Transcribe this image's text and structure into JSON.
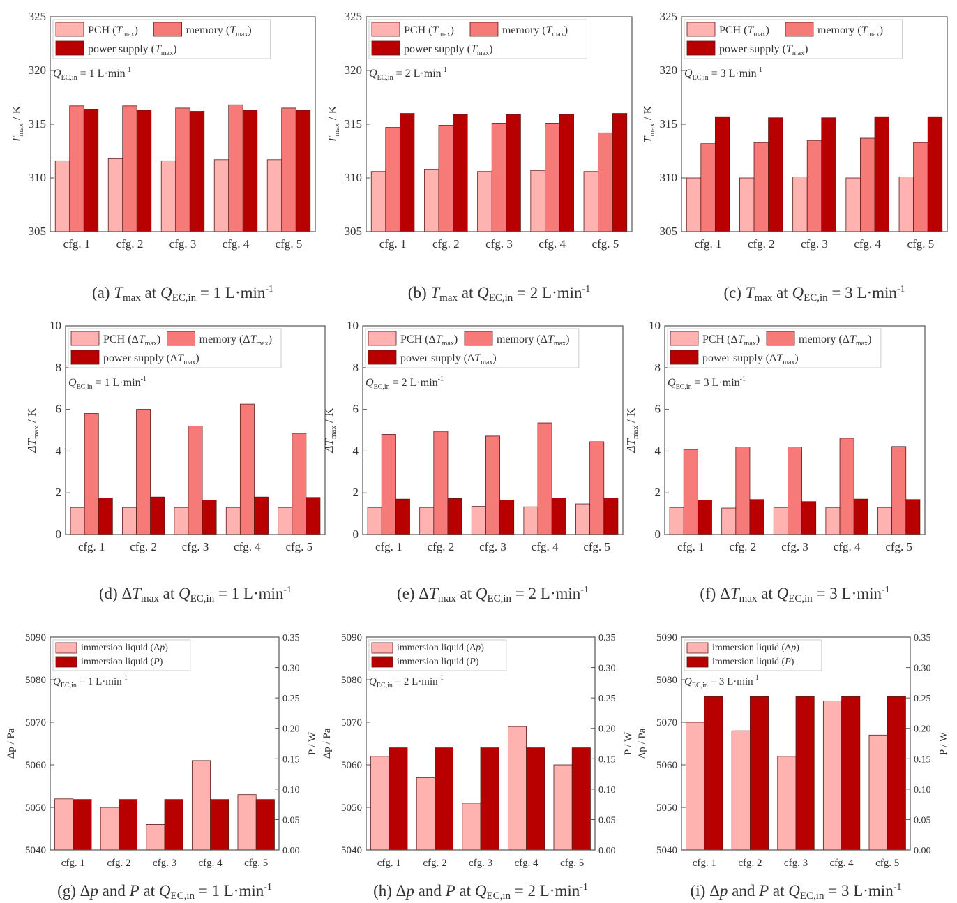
{
  "colors": {
    "pch": "#ffb3b0",
    "memory": "#f57a78",
    "power": "#b80000",
    "axis": "#555555",
    "legend_border": "#cccccc"
  },
  "chart_data": [
    {
      "id": "a",
      "type": "bar",
      "categories": [
        "cfg. 1",
        "cfg. 2",
        "cfg. 3",
        "cfg. 4",
        "cfg. 5"
      ],
      "ylabel_main": "T",
      "ylabel_sub": "max",
      "ylabel_unit": " / K",
      "ylim": [
        305,
        325
      ],
      "yticks": [
        "305",
        "310",
        "315",
        "320",
        "325"
      ],
      "flow_prefix": "Q",
      "flow_sub": "EC,in",
      "flow_value": " = 1 L·min",
      "flow_exp": "-1",
      "legend": [
        {
          "name": "PCH (",
          "var": "T",
          "sub": "max",
          "close": ")",
          "color_key": "pch"
        },
        {
          "name": "memory (",
          "var": "T",
          "sub": "max",
          "close": ")",
          "color_key": "memory"
        },
        {
          "name": "power supply (",
          "var": "T",
          "sub": "max",
          "close": ")",
          "color_key": "power"
        }
      ],
      "series": [
        {
          "name": "PCH (Tmax)",
          "values": [
            311.6,
            311.8,
            311.6,
            311.7,
            311.7
          ]
        },
        {
          "name": "memory (Tmax)",
          "values": [
            316.7,
            316.7,
            316.5,
            316.8,
            316.5
          ]
        },
        {
          "name": "power supply (Tmax)",
          "values": [
            316.4,
            316.3,
            316.2,
            316.3,
            316.3
          ]
        }
      ],
      "caption": {
        "label": "(a) ",
        "var": "T",
        "sub": "max",
        "mid": " at ",
        "q": "Q",
        "qsub": "EC,in",
        "rest": " = 1 L·min",
        "exp": "-1"
      }
    },
    {
      "id": "b",
      "type": "bar",
      "categories": [
        "cfg. 1",
        "cfg. 2",
        "cfg. 3",
        "cfg. 4",
        "cfg. 5"
      ],
      "ylabel_main": "T",
      "ylabel_sub": "max",
      "ylabel_unit": " / K",
      "ylim": [
        305,
        325
      ],
      "yticks": [
        "305",
        "310",
        "315",
        "320",
        "325"
      ],
      "flow_prefix": "Q",
      "flow_sub": "EC,in",
      "flow_value": " = 2 L·min",
      "flow_exp": "-1",
      "legend": [
        {
          "name": "PCH (",
          "var": "T",
          "sub": "max",
          "close": ")",
          "color_key": "pch"
        },
        {
          "name": "memory (",
          "var": "T",
          "sub": "max",
          "close": ")",
          "color_key": "memory"
        },
        {
          "name": "power supply (",
          "var": "T",
          "sub": "max",
          "close": ")",
          "color_key": "power"
        }
      ],
      "series": [
        {
          "name": "PCH (Tmax)",
          "values": [
            310.6,
            310.8,
            310.6,
            310.7,
            310.6
          ]
        },
        {
          "name": "memory (Tmax)",
          "values": [
            314.7,
            314.9,
            315.1,
            315.1,
            314.2
          ]
        },
        {
          "name": "power supply (Tmax)",
          "values": [
            316.0,
            315.9,
            315.9,
            315.9,
            316.0
          ]
        }
      ],
      "caption": {
        "label": "(b) ",
        "var": "T",
        "sub": "max",
        "mid": " at ",
        "q": "Q",
        "qsub": "EC,in",
        "rest": " = 2 L·min",
        "exp": "-1"
      }
    },
    {
      "id": "c",
      "type": "bar",
      "categories": [
        "cfg. 1",
        "cfg. 2",
        "cfg. 3",
        "cfg. 4",
        "cfg. 5"
      ],
      "ylabel_main": "T",
      "ylabel_sub": "max",
      "ylabel_unit": " / K",
      "ylim": [
        305,
        325
      ],
      "yticks": [
        "305",
        "310",
        "315",
        "320",
        "325"
      ],
      "flow_prefix": "Q",
      "flow_sub": "EC,in",
      "flow_value": " = 3 L·min",
      "flow_exp": "-1",
      "legend": [
        {
          "name": "PCH (",
          "var": "T",
          "sub": "max",
          "close": ")",
          "color_key": "pch"
        },
        {
          "name": "memory (",
          "var": "T",
          "sub": "max",
          "close": ")",
          "color_key": "memory"
        },
        {
          "name": "power supply (",
          "var": "T",
          "sub": "max",
          "close": ")",
          "color_key": "power"
        }
      ],
      "series": [
        {
          "name": "PCH (Tmax)",
          "values": [
            310.0,
            310.0,
            310.1,
            310.0,
            310.1
          ]
        },
        {
          "name": "memory (Tmax)",
          "values": [
            313.2,
            313.3,
            313.5,
            313.7,
            313.3
          ]
        },
        {
          "name": "power supply (Tmax)",
          "values": [
            315.7,
            315.6,
            315.6,
            315.7,
            315.7
          ]
        }
      ],
      "caption": {
        "label": "(c) ",
        "var": "T",
        "sub": "max",
        "mid": " at ",
        "q": "Q",
        "qsub": "EC,in",
        "rest": " = 3 L·min",
        "exp": "-1"
      }
    },
    {
      "id": "d",
      "type": "bar",
      "categories": [
        "cfg. 1",
        "cfg. 2",
        "cfg. 3",
        "cfg. 4",
        "cfg. 5"
      ],
      "ylabel_main": "ΔT",
      "ylabel_sub": "max",
      "ylabel_unit": " / K",
      "ylim": [
        0,
        10
      ],
      "yticks": [
        "0",
        "2",
        "4",
        "6",
        "8",
        "10"
      ],
      "flow_prefix": "Q",
      "flow_sub": "EC,in",
      "flow_value": " = 1 L·min",
      "flow_exp": "-1",
      "legend": [
        {
          "name": "PCH (Δ",
          "var": "T",
          "sub": "max",
          "close": ")",
          "color_key": "pch"
        },
        {
          "name": "memory (Δ",
          "var": "T",
          "sub": "max",
          "close": ")",
          "color_key": "memory"
        },
        {
          "name": "power supply (Δ",
          "var": "T",
          "sub": "max",
          "close": ")",
          "color_key": "power"
        }
      ],
      "series": [
        {
          "name": "PCH (ΔTmax)",
          "values": [
            1.3,
            1.3,
            1.3,
            1.3,
            1.3
          ]
        },
        {
          "name": "memory (ΔTmax)",
          "values": [
            5.8,
            6.0,
            5.2,
            6.25,
            4.85
          ]
        },
        {
          "name": "power supply (ΔTmax)",
          "values": [
            1.75,
            1.8,
            1.65,
            1.8,
            1.78
          ]
        }
      ],
      "caption": {
        "label": "(d) Δ",
        "var": "T",
        "sub": "max",
        "mid": " at ",
        "q": "Q",
        "qsub": "EC,in",
        "rest": " = 1 L·min",
        "exp": "-1"
      }
    },
    {
      "id": "e",
      "type": "bar",
      "categories": [
        "cfg. 1",
        "cfg. 2",
        "cfg. 3",
        "cfg. 4",
        "cfg. 5"
      ],
      "ylabel_main": "ΔT",
      "ylabel_sub": "max",
      "ylabel_unit": " / K",
      "ylim": [
        0,
        10
      ],
      "yticks": [
        "0",
        "2",
        "4",
        "6",
        "8",
        "10"
      ],
      "flow_prefix": "Q",
      "flow_sub": "EC,in",
      "flow_value": " = 2 L·min",
      "flow_exp": "-1",
      "legend": [
        {
          "name": "PCH (Δ",
          "var": "T",
          "sub": "max",
          "close": ")",
          "color_key": "pch"
        },
        {
          "name": "memory (Δ",
          "var": "T",
          "sub": "max",
          "close": ")",
          "color_key": "memory"
        },
        {
          "name": "power supply (Δ",
          "var": "T",
          "sub": "max",
          "close": ")",
          "color_key": "power"
        }
      ],
      "series": [
        {
          "name": "PCH (ΔTmax)",
          "values": [
            1.3,
            1.3,
            1.35,
            1.33,
            1.47
          ]
        },
        {
          "name": "memory (ΔTmax)",
          "values": [
            4.8,
            4.95,
            4.72,
            5.35,
            4.45
          ]
        },
        {
          "name": "power supply (ΔTmax)",
          "values": [
            1.7,
            1.73,
            1.65,
            1.75,
            1.75
          ]
        }
      ],
      "caption": {
        "label": "(e) Δ",
        "var": "T",
        "sub": "max",
        "mid": " at ",
        "q": "Q",
        "qsub": "EC,in",
        "rest": " = 2 L·min",
        "exp": "-1"
      }
    },
    {
      "id": "f",
      "type": "bar",
      "categories": [
        "cfg. 1",
        "cfg. 2",
        "cfg. 3",
        "cfg. 4",
        "cfg. 5"
      ],
      "ylabel_main": "ΔT",
      "ylabel_sub": "max",
      "ylabel_unit": " / K",
      "ylim": [
        0,
        10
      ],
      "yticks": [
        "0",
        "2",
        "4",
        "6",
        "8",
        "10"
      ],
      "flow_prefix": "Q",
      "flow_sub": "EC,in",
      "flow_value": " = 3 L·min",
      "flow_exp": "-1",
      "legend": [
        {
          "name": "PCH (Δ",
          "var": "T",
          "sub": "max",
          "close": ")",
          "color_key": "pch"
        },
        {
          "name": "memory (Δ",
          "var": "T",
          "sub": "max",
          "close": ")",
          "color_key": "memory"
        },
        {
          "name": "power supply (Δ",
          "var": "T",
          "sub": "max",
          "close": ")",
          "color_key": "power"
        }
      ],
      "series": [
        {
          "name": "PCH (ΔTmax)",
          "values": [
            1.3,
            1.27,
            1.3,
            1.3,
            1.3
          ]
        },
        {
          "name": "memory (ΔTmax)",
          "values": [
            4.08,
            4.2,
            4.2,
            4.62,
            4.22
          ]
        },
        {
          "name": "power supply (ΔTmax)",
          "values": [
            1.65,
            1.68,
            1.58,
            1.7,
            1.68
          ]
        }
      ],
      "caption": {
        "label": "(f) Δ",
        "var": "T",
        "sub": "max",
        "mid": " at ",
        "q": "Q",
        "qsub": "EC,in",
        "rest": " = 3 L·min",
        "exp": "-1"
      }
    },
    {
      "id": "g",
      "type": "bar",
      "categories": [
        "cfg. 1",
        "cfg. 2",
        "cfg. 3",
        "cfg. 4",
        "cfg. 5"
      ],
      "ylabel_left": "Δp / Pa",
      "ylabel_right": "P / W",
      "ylim": [
        5040,
        5090
      ],
      "yticks": [
        "5040",
        "5050",
        "5060",
        "5070",
        "5080",
        "5090"
      ],
      "ylim_right": [
        0,
        0.35
      ],
      "yticks_right": [
        "0.00",
        "0.05",
        "0.10",
        "0.15",
        "0.20",
        "0.25",
        "0.30",
        "0.35"
      ],
      "flow_prefix": "Q",
      "flow_sub": "EC,in",
      "flow_value": " = 1 L·min",
      "flow_exp": "-1",
      "legend": [
        {
          "name": "immersion liquid (Δ",
          "var": "p",
          "sub": "",
          "close": ")",
          "color_key": "pch"
        },
        {
          "name": "immersion liquid (",
          "var": "P",
          "sub": "",
          "close": ")",
          "color_key": "power"
        }
      ],
      "series": [
        {
          "name": "immersion liquid (Δp)",
          "axis": "left",
          "values": [
            5052,
            5050,
            5046,
            5061,
            5053
          ]
        },
        {
          "name": "immersion liquid (P)",
          "axis": "right",
          "values": [
            0.083,
            0.083,
            0.083,
            0.083,
            0.083
          ]
        }
      ],
      "caption": {
        "label": "(g) Δ",
        "var": "p",
        "sub": "",
        "mid": " and ",
        "extra": "P",
        "mid2": " at ",
        "q": "Q",
        "qsub": "EC,in",
        "rest": " = 1 L·min",
        "exp": "-1"
      }
    },
    {
      "id": "h",
      "type": "bar",
      "categories": [
        "cfg. 1",
        "cfg. 2",
        "cfg. 3",
        "cfg. 4",
        "cfg. 5"
      ],
      "ylabel_left": "Δp / Pa",
      "ylabel_right": "P / W",
      "ylim": [
        5040,
        5090
      ],
      "yticks": [
        "5040",
        "5050",
        "5060",
        "5070",
        "5080",
        "5090"
      ],
      "ylim_right": [
        0,
        0.35
      ],
      "yticks_right": [
        "0.00",
        "0.05",
        "0.10",
        "0.15",
        "0.20",
        "0.25",
        "0.30",
        "0.35"
      ],
      "flow_prefix": "Q",
      "flow_sub": "EC,in",
      "flow_value": " = 2 L·min",
      "flow_exp": "-1",
      "legend": [
        {
          "name": "immersion liquid (Δ",
          "var": "p",
          "sub": "",
          "close": ")",
          "color_key": "pch"
        },
        {
          "name": "immersion liquid (",
          "var": "P",
          "sub": "",
          "close": ")",
          "color_key": "power"
        }
      ],
      "series": [
        {
          "name": "immersion liquid (Δp)",
          "axis": "left",
          "values": [
            5062,
            5057,
            5051,
            5069,
            5060
          ]
        },
        {
          "name": "immersion liquid (P)",
          "axis": "right",
          "values": [
            0.168,
            0.168,
            0.168,
            0.168,
            0.168
          ]
        }
      ],
      "caption": {
        "label": "(h) Δ",
        "var": "p",
        "sub": "",
        "mid": " and ",
        "extra": "P",
        "mid2": " at ",
        "q": "Q",
        "qsub": "EC,in",
        "rest": " = 2 L·min",
        "exp": "-1"
      }
    },
    {
      "id": "i",
      "type": "bar",
      "categories": [
        "cfg. 1",
        "cfg. 2",
        "cfg. 3",
        "cfg. 4",
        "cfg. 5"
      ],
      "ylabel_left": "Δp / Pa",
      "ylabel_right": "P / W",
      "ylim": [
        5040,
        5090
      ],
      "yticks": [
        "5040",
        "5050",
        "5060",
        "5070",
        "5080",
        "5090"
      ],
      "ylim_right": [
        0,
        0.35
      ],
      "yticks_right": [
        "0.00",
        "0.05",
        "0.10",
        "0.15",
        "0.20",
        "0.25",
        "0.30",
        "0.35"
      ],
      "flow_prefix": "Q",
      "flow_sub": "EC,in",
      "flow_value": " = 3 L·min",
      "flow_exp": "-1",
      "legend": [
        {
          "name": "immersion liquid (Δ",
          "var": "p",
          "sub": "",
          "close": ")",
          "color_key": "pch"
        },
        {
          "name": "immersion liquid (",
          "var": "P",
          "sub": "",
          "close": ")",
          "color_key": "power"
        }
      ],
      "series": [
        {
          "name": "immersion liquid (Δp)",
          "axis": "left",
          "values": [
            5070,
            5068,
            5062,
            5075,
            5067
          ]
        },
        {
          "name": "immersion liquid (P)",
          "axis": "right",
          "values": [
            0.252,
            0.252,
            0.252,
            0.252,
            0.252
          ]
        }
      ],
      "caption": {
        "label": "(i) Δ",
        "var": "p",
        "sub": "",
        "mid": " and ",
        "extra": "P",
        "mid2": " at ",
        "q": "Q",
        "qsub": "EC,in",
        "rest": " = 3 L·min",
        "exp": "-1"
      }
    }
  ]
}
